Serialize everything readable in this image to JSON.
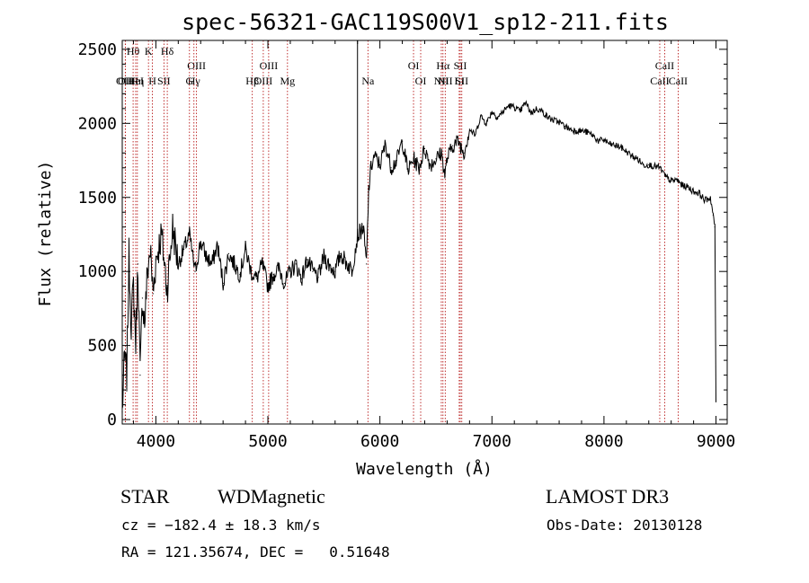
{
  "chart_data": {
    "type": "line",
    "title": "spec-56321-GAC119S00V1_sp12-211.fits",
    "xlabel": "Wavelength (Å)",
    "ylabel": "Flux (relative)",
    "xlim": [
      3700,
      9100
    ],
    "ylim": [
      -30,
      2560
    ],
    "xticks": [
      4000,
      5000,
      6000,
      7000,
      8000,
      9000
    ],
    "yticks": [
      0,
      500,
      1000,
      1500,
      2000,
      2500
    ],
    "series": [
      {
        "name": "flux",
        "x": [
          3700,
          3720,
          3740,
          3760,
          3780,
          3800,
          3820,
          3840,
          3860,
          3880,
          3900,
          3925,
          3950,
          3975,
          4000,
          4050,
          4100,
          4150,
          4200,
          4250,
          4300,
          4350,
          4400,
          4450,
          4500,
          4550,
          4600,
          4650,
          4700,
          4750,
          4800,
          4850,
          4900,
          4950,
          5000,
          5050,
          5100,
          5150,
          5200,
          5250,
          5300,
          5350,
          5400,
          5450,
          5500,
          5550,
          5600,
          5650,
          5700,
          5750,
          5800,
          5850,
          5880,
          5900,
          5920,
          5950,
          6000,
          6050,
          6100,
          6150,
          6200,
          6250,
          6300,
          6350,
          6400,
          6450,
          6500,
          6550,
          6580,
          6600,
          6650,
          6700,
          6750,
          6800,
          6850,
          6900,
          6950,
          7000,
          7050,
          7100,
          7150,
          7200,
          7250,
          7300,
          7350,
          7400,
          7450,
          7500,
          7550,
          7600,
          7650,
          7700,
          7750,
          7800,
          7850,
          7900,
          7950,
          8000,
          8050,
          8100,
          8150,
          8200,
          8250,
          8300,
          8350,
          8400,
          8450,
          8500,
          8550,
          8600,
          8650,
          8700,
          8750,
          8800,
          8850,
          8900,
          8950,
          8975,
          8990,
          9000
        ],
        "values": [
          50,
          420,
          300,
          1100,
          650,
          900,
          520,
          1050,
          300,
          820,
          650,
          1000,
          1150,
          850,
          1080,
          1250,
          880,
          1300,
          1050,
          1150,
          1250,
          1000,
          1200,
          1100,
          1050,
          1180,
          920,
          1120,
          1050,
          980,
          1150,
          1000,
          950,
          1050,
          900,
          980,
          1020,
          920,
          1000,
          1050,
          950,
          1080,
          1000,
          960,
          1100,
          1040,
          1000,
          1120,
          1060,
          1010,
          1240,
          1300,
          1050,
          1550,
          1700,
          1780,
          1720,
          1860,
          1700,
          1750,
          1880,
          1680,
          1760,
          1700,
          1830,
          1720,
          1760,
          1800,
          1650,
          1760,
          1850,
          1880,
          1800,
          1960,
          1920,
          2050,
          2000,
          2080,
          2040,
          2080,
          2120,
          2110,
          2080,
          2140,
          2070,
          2100,
          2080,
          2040,
          2020,
          2010,
          1980,
          1960,
          1950,
          1950,
          1940,
          1920,
          1880,
          1890,
          1860,
          1850,
          1840,
          1810,
          1780,
          1760,
          1720,
          1720,
          1710,
          1700,
          1640,
          1610,
          1620,
          1580,
          1570,
          1540,
          1530,
          1480,
          1500,
          1380,
          1300,
          120
        ]
      }
    ],
    "lines": [
      {
        "label": "OII",
        "x": 3727,
        "row": 2
      },
      {
        "label": "Hθ",
        "x": 3797,
        "row": 0
      },
      {
        "label": "OIII",
        "x": 3727,
        "row": 3
      },
      {
        "label": "HeI",
        "x": 3820,
        "row": 2
      },
      {
        "label": "Hη",
        "x": 3835,
        "row": 3
      },
      {
        "label": "K",
        "x": 3934,
        "row": 0
      },
      {
        "label": "SII",
        "x": 4072,
        "row": 2
      },
      {
        "label": "H",
        "x": 3969,
        "row": 3
      },
      {
        "label": "Hδ",
        "x": 4102,
        "row": 0
      },
      {
        "label": "OIII",
        "x": 4363,
        "row": 1
      },
      {
        "label": "Hγ",
        "x": 4340,
        "row": 2
      },
      {
        "label": "G",
        "x": 4300,
        "row": 3
      },
      {
        "label": "OIII",
        "x": 5007,
        "row": 1
      },
      {
        "label": "OIII",
        "x": 4959,
        "row": 2
      },
      {
        "label": "Hβ",
        "x": 4861,
        "row": 3
      },
      {
        "label": "Mg",
        "x": 5175,
        "row": 3
      },
      {
        "label": "Na",
        "x": 5893,
        "row": 2
      },
      {
        "label": "OI",
        "x": 6300,
        "row": 1
      },
      {
        "label": "OI",
        "x": 6364,
        "row": 3
      },
      {
        "label": "Hα",
        "x": 6563,
        "row": 1
      },
      {
        "label": "NII",
        "x": 6548,
        "row": 2
      },
      {
        "label": "NII",
        "x": 6583,
        "row": 3
      },
      {
        "label": "SII",
        "x": 6717,
        "row": 1
      },
      {
        "label": "Li",
        "x": 6708,
        "row": 2
      },
      {
        "label": "SII",
        "x": 6731,
        "row": 3
      },
      {
        "label": "CaII",
        "x": 8542,
        "row": 1
      },
      {
        "label": "CaII",
        "x": 8498,
        "row": 2
      },
      {
        "label": "CaII",
        "x": 8662,
        "row": 3
      }
    ],
    "vertical_line_x": 5800
  },
  "info": {
    "object_class": "STAR",
    "subclass": "WDMagnetic",
    "survey": "LAMOST DR3",
    "cz": "cz = −182.4 ± 18.3 km/s",
    "obs_date": "Obs-Date: 20130128",
    "radec": "RA = 121.35674, DEC =   0.51648"
  }
}
